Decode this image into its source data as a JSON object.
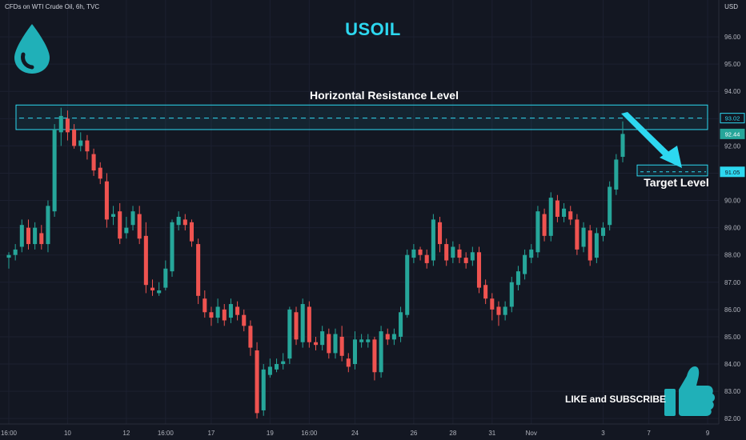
{
  "header": {
    "symbol_line": "CFDs on WTI Crude Oil, 6h, TVC",
    "currency": "USD"
  },
  "title": "USOIL",
  "annotations": {
    "resistance_label": "Horizontal Resistance Level",
    "target_label": "Target Level",
    "cta": "LIKE and SUBSCRIBE"
  },
  "colors": {
    "up": "#26a69a",
    "down": "#ef5350",
    "accent": "#2dd8f0",
    "bg": "#131722",
    "last_price": "#26a69a"
  },
  "icons": {
    "logo": "oil-drop-icon",
    "cta": "thumbs-up-icon"
  },
  "chart_data": {
    "type": "candlestick",
    "ylim": [
      81.8,
      97.0
    ],
    "yticks": [
      "82.00",
      "83.00",
      "84.00",
      "85.00",
      "86.00",
      "87.00",
      "88.00",
      "89.00",
      "90.00",
      "91.00",
      "92.00",
      "93.00",
      "94.00",
      "95.00",
      "96.00"
    ],
    "xticks": [
      {
        "label": "16:00",
        "i": 0
      },
      {
        "label": "10",
        "i": 9
      },
      {
        "label": "12",
        "i": 18
      },
      {
        "label": "16:00",
        "i": 24
      },
      {
        "label": "17",
        "i": 31
      },
      {
        "label": "19",
        "i": 40
      },
      {
        "label": "16:00",
        "i": 46
      },
      {
        "label": "24",
        "i": 53
      },
      {
        "label": "26",
        "i": 62
      },
      {
        "label": "28",
        "i": 68
      },
      {
        "label": "31",
        "i": 74
      },
      {
        "label": "Nov",
        "i": 80
      },
      {
        "label": "3",
        "i": 91
      },
      {
        "label": "7",
        "i": 98
      },
      {
        "label": "9",
        "i": 107
      }
    ],
    "resistance": {
      "low": 92.6,
      "high": 93.5,
      "level": 93.02,
      "label": "93.02"
    },
    "target": {
      "low": 90.9,
      "high": 91.3,
      "level": 91.05,
      "label": "91.05"
    },
    "last_price": {
      "value": 92.44,
      "label": "92.44"
    },
    "candles": [
      [
        87.9,
        88.0,
        87.5,
        88.1
      ],
      [
        88.0,
        88.2,
        87.8,
        88.4
      ],
      [
        88.3,
        89.1,
        88.1,
        89.3
      ],
      [
        89.0,
        88.4,
        88.2,
        89.3
      ],
      [
        88.4,
        89.0,
        88.2,
        89.2
      ],
      [
        88.8,
        88.4,
        88.2,
        89.1
      ],
      [
        88.4,
        89.8,
        88.1,
        90.0
      ],
      [
        89.6,
        92.6,
        89.4,
        92.8
      ],
      [
        92.5,
        93.1,
        92.0,
        93.4
      ],
      [
        93.0,
        92.5,
        92.2,
        93.3
      ],
      [
        92.6,
        92.0,
        91.9,
        92.8
      ],
      [
        92.0,
        92.2,
        91.8,
        92.5
      ],
      [
        92.2,
        91.8,
        91.5,
        92.4
      ],
      [
        91.7,
        91.1,
        90.9,
        91.9
      ],
      [
        91.2,
        90.8,
        90.6,
        91.4
      ],
      [
        90.7,
        89.3,
        89.0,
        91.0
      ],
      [
        89.4,
        89.5,
        89.1,
        89.8
      ],
      [
        89.6,
        88.6,
        88.4,
        89.9
      ],
      [
        88.8,
        89.0,
        88.6,
        89.4
      ],
      [
        89.1,
        89.6,
        88.9,
        89.8
      ],
      [
        89.5,
        88.6,
        88.4,
        89.8
      ],
      [
        88.7,
        86.9,
        86.6,
        89.2
      ],
      [
        86.8,
        86.7,
        86.5,
        87.1
      ],
      [
        86.6,
        86.7,
        86.5,
        87.0
      ],
      [
        86.8,
        87.5,
        86.7,
        87.8
      ],
      [
        87.4,
        89.2,
        87.2,
        89.3
      ],
      [
        89.1,
        89.4,
        88.9,
        89.6
      ],
      [
        89.3,
        89.1,
        88.9,
        89.5
      ],
      [
        89.2,
        88.5,
        88.3,
        89.3
      ],
      [
        88.4,
        86.5,
        86.2,
        88.6
      ],
      [
        86.4,
        85.9,
        85.7,
        86.7
      ],
      [
        85.9,
        85.7,
        85.4,
        86.1
      ],
      [
        85.7,
        86.1,
        85.5,
        86.4
      ],
      [
        86.0,
        85.6,
        85.4,
        86.2
      ],
      [
        85.7,
        86.2,
        85.5,
        86.4
      ],
      [
        86.1,
        85.8,
        85.6,
        86.3
      ],
      [
        85.8,
        85.4,
        85.2,
        86.0
      ],
      [
        85.4,
        84.6,
        84.3,
        85.6
      ],
      [
        84.5,
        82.2,
        82.0,
        84.8
      ],
      [
        82.3,
        83.8,
        82.1,
        84.0
      ],
      [
        83.6,
        83.9,
        83.5,
        84.2
      ],
      [
        83.8,
        84.0,
        83.7,
        84.2
      ],
      [
        84.0,
        84.1,
        83.8,
        84.4
      ],
      [
        84.2,
        86.0,
        84.0,
        86.1
      ],
      [
        85.9,
        84.9,
        84.7,
        86.1
      ],
      [
        84.8,
        86.2,
        84.6,
        86.4
      ],
      [
        86.1,
        84.8,
        84.6,
        86.3
      ],
      [
        84.8,
        84.7,
        84.5,
        85.0
      ],
      [
        84.7,
        85.2,
        84.5,
        85.4
      ],
      [
        85.1,
        84.4,
        84.2,
        85.3
      ],
      [
        84.4,
        85.1,
        84.2,
        85.3
      ],
      [
        85.0,
        84.3,
        84.1,
        85.4
      ],
      [
        84.2,
        83.9,
        83.7,
        84.4
      ],
      [
        84.0,
        84.9,
        83.8,
        85.2
      ],
      [
        84.8,
        84.9,
        84.6,
        85.1
      ],
      [
        84.8,
        84.9,
        84.6,
        85.1
      ],
      [
        84.9,
        83.7,
        83.4,
        85.0
      ],
      [
        83.7,
        85.2,
        83.5,
        85.4
      ],
      [
        85.1,
        84.9,
        84.7,
        85.3
      ],
      [
        84.9,
        85.1,
        84.7,
        85.3
      ],
      [
        85.0,
        85.9,
        84.8,
        86.1
      ],
      [
        85.8,
        88.0,
        85.7,
        88.2
      ],
      [
        87.9,
        88.2,
        87.7,
        88.4
      ],
      [
        88.2,
        88.0,
        87.8,
        88.3
      ],
      [
        88.0,
        87.7,
        87.5,
        88.2
      ],
      [
        87.8,
        89.3,
        87.6,
        89.5
      ],
      [
        89.2,
        88.4,
        88.1,
        89.4
      ],
      [
        88.4,
        87.8,
        87.6,
        88.6
      ],
      [
        87.9,
        88.3,
        87.7,
        88.5
      ],
      [
        88.2,
        87.9,
        87.7,
        88.4
      ],
      [
        87.9,
        87.7,
        87.5,
        88.1
      ],
      [
        87.8,
        88.1,
        87.6,
        88.3
      ],
      [
        88.1,
        86.8,
        86.6,
        88.3
      ],
      [
        86.9,
        86.4,
        86.2,
        87.1
      ],
      [
        86.4,
        86.0,
        85.6,
        86.6
      ],
      [
        86.1,
        85.8,
        85.4,
        86.3
      ],
      [
        85.8,
        86.1,
        85.6,
        86.3
      ],
      [
        86.1,
        87.0,
        85.9,
        87.2
      ],
      [
        86.9,
        87.4,
        86.7,
        87.6
      ],
      [
        87.3,
        88.0,
        87.1,
        88.2
      ],
      [
        87.9,
        88.2,
        87.7,
        88.4
      ],
      [
        88.1,
        89.6,
        87.9,
        89.8
      ],
      [
        89.5,
        88.7,
        88.5,
        89.7
      ],
      [
        88.7,
        90.1,
        88.5,
        90.3
      ],
      [
        90.0,
        89.4,
        89.2,
        90.2
      ],
      [
        89.4,
        89.7,
        89.2,
        89.9
      ],
      [
        89.6,
        89.3,
        89.1,
        89.8
      ],
      [
        89.3,
        88.2,
        88.0,
        89.5
      ],
      [
        88.3,
        89.0,
        88.1,
        89.2
      ],
      [
        88.9,
        87.8,
        87.6,
        89.1
      ],
      [
        87.9,
        88.8,
        87.7,
        89.0
      ],
      [
        88.7,
        89.0,
        88.5,
        89.2
      ],
      [
        89.1,
        90.5,
        88.9,
        90.7
      ],
      [
        90.4,
        91.5,
        90.2,
        91.7
      ],
      [
        91.6,
        92.44,
        91.4,
        92.9
      ]
    ]
  }
}
